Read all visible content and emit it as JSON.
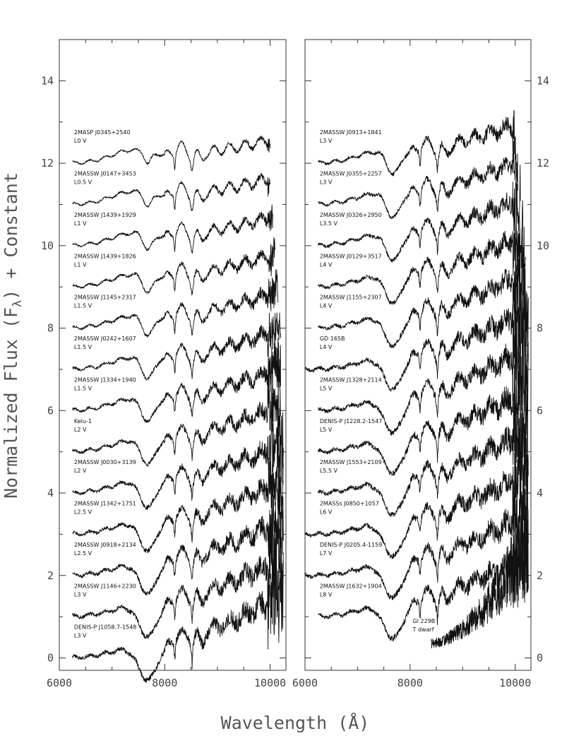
{
  "chart_data": {
    "type": "line",
    "title": "",
    "xlabel": "Wavelength (Å)",
    "ylabel": "Normalized Flux (F",
    "ylabel_sub": "λ",
    "ylabel_tail": ") + Constant",
    "xlim": [
      6000,
      10300
    ],
    "ylim": [
      -0.3,
      15.0
    ],
    "x_ticks": [
      6000,
      8000,
      10000
    ],
    "y_ticks": [
      0,
      2,
      4,
      6,
      8,
      10,
      12,
      14
    ],
    "grid": false,
    "legend": "none",
    "panels": [
      {
        "id": "left",
        "y_tick_side": "left",
        "spectra": [
          {
            "designation": "2MASP J0345+2540",
            "type": "L0 V",
            "offset": 12,
            "start": 6250,
            "end": 10000
          },
          {
            "designation": "2MASSW J0147+3453",
            "type": "L0.5 V",
            "offset": 11,
            "start": 6250,
            "end": 10000
          },
          {
            "designation": "2MASSW J1439+1929",
            "type": "L1 V",
            "offset": 10,
            "start": 6250,
            "end": 10050
          },
          {
            "designation": "2MASSW J1439+1826",
            "type": "L1 V",
            "offset": 9,
            "start": 6250,
            "end": 10100
          },
          {
            "designation": "2MASSW J1145+2317",
            "type": "L1.5 V",
            "offset": 8,
            "start": 6250,
            "end": 10150
          },
          {
            "designation": "2MASSW J0242+1607",
            "type": "L1.5 V",
            "offset": 7,
            "start": 6250,
            "end": 10200
          },
          {
            "designation": "2MASSW J1334+1940",
            "type": "L1.5 V",
            "offset": 6,
            "start": 6250,
            "end": 10200
          },
          {
            "designation": "Kelu-1",
            "type": "L2 V",
            "offset": 5,
            "start": 6250,
            "end": 10200
          },
          {
            "designation": "2MASSW J0030+3139",
            "type": "L2 V",
            "offset": 4,
            "start": 6250,
            "end": 10250
          },
          {
            "designation": "2MASSW J1342+1751",
            "type": "L2.5 V",
            "offset": 3,
            "start": 6250,
            "end": 10250
          },
          {
            "designation": "2MASSW J0918+2134",
            "type": "L2.5 V",
            "offset": 2,
            "start": 6250,
            "end": 10250
          },
          {
            "designation": "2MASSW J1146+2230",
            "type": "L3 V",
            "offset": 1,
            "start": 6250,
            "end": 10250
          },
          {
            "designation": "DENIS-P J1058.7-1548",
            "type": "L3 V",
            "offset": 0,
            "start": 6250,
            "end": 10250
          }
        ]
      },
      {
        "id": "right",
        "y_tick_side": "right",
        "spectra": [
          {
            "designation": "2MASSW J0913+1841",
            "type": "L3 V",
            "offset": 12,
            "start": 6250,
            "end": 10000
          },
          {
            "designation": "2MASSW J0355+2257",
            "type": "L3 V",
            "offset": 11,
            "start": 6250,
            "end": 10050
          },
          {
            "designation": "2MASSW J0326+2950",
            "type": "L3.5 V",
            "offset": 10,
            "start": 6250,
            "end": 10100
          },
          {
            "designation": "2MASSW J0129+3517",
            "type": "L4 V",
            "offset": 9,
            "start": 6250,
            "end": 10150
          },
          {
            "designation": "2MASSW J1155+2307",
            "type": "L4 V",
            "offset": 8,
            "start": 6250,
            "end": 10200
          },
          {
            "designation": "GD 165B",
            "type": "L4 V",
            "offset": 7,
            "start": 6000,
            "end": 10250
          },
          {
            "designation": "2MASSW J1328+2114",
            "type": "L5 V",
            "offset": 6,
            "start": 6250,
            "end": 10250
          },
          {
            "designation": "DENIS-P J1228.2-1547",
            "type": "L5 V",
            "offset": 5,
            "start": 6250,
            "end": 10250
          },
          {
            "designation": "2MASSW J1553+2109",
            "type": "L5.5 V",
            "offset": 4,
            "start": 6250,
            "end": 10250
          },
          {
            "designation": "2MASSs J0850+1057",
            "type": "L6 V",
            "offset": 3,
            "start": 6000,
            "end": 10250
          },
          {
            "designation": "DENIS-P J0205.4-1159",
            "type": "L7 V",
            "offset": 2,
            "start": 6000,
            "end": 10250
          },
          {
            "designation": "2MASSW J1632+1904",
            "type": "L8 V",
            "offset": 1,
            "start": 6250,
            "end": 10250
          },
          {
            "designation": "Gl 229B",
            "type": "T dwarf",
            "offset": 0.3,
            "start": 8400,
            "end": 10250
          }
        ]
      }
    ]
  }
}
